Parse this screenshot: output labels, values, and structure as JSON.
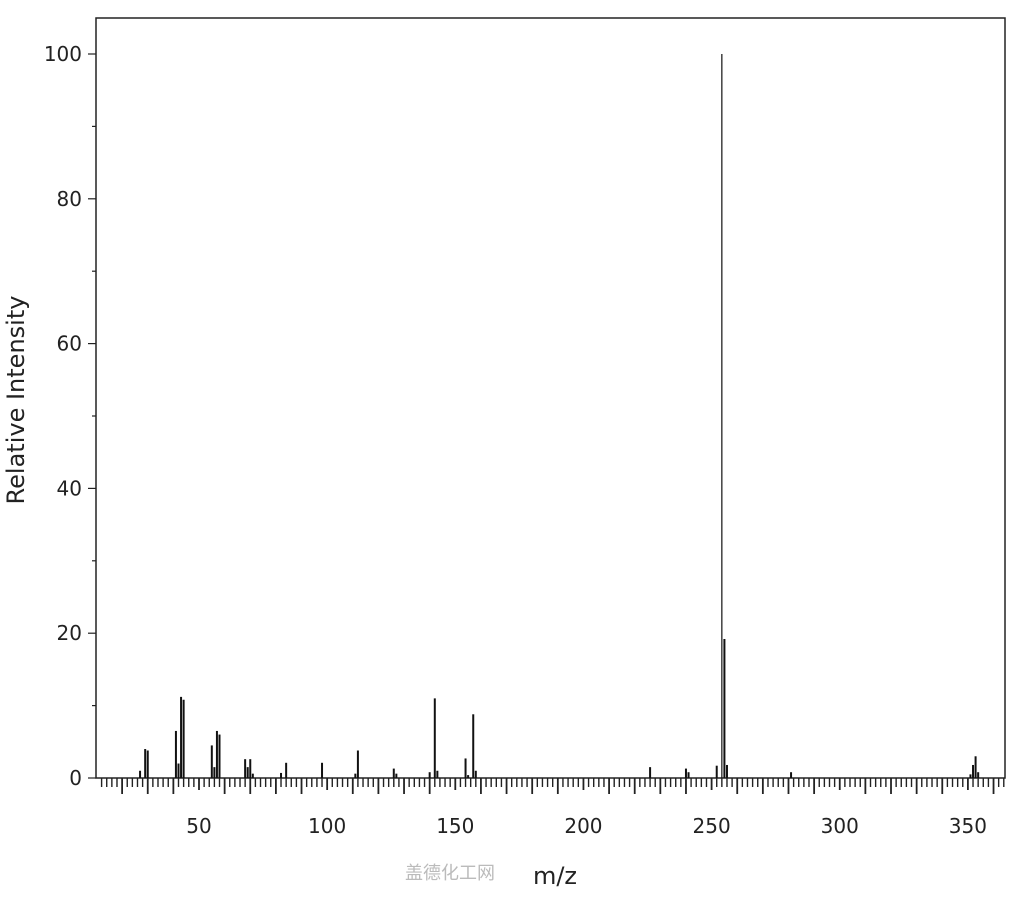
{
  "chart_data": {
    "type": "bar",
    "title": "",
    "xlabel": "m/z",
    "ylabel": "Relative Intensity",
    "xlim": [
      10,
      365
    ],
    "ylim": [
      0,
      105
    ],
    "x_ticks": [
      50,
      100,
      150,
      200,
      250,
      300,
      350
    ],
    "y_ticks": [
      0,
      20,
      40,
      60,
      80,
      100
    ],
    "grid": false,
    "peaks": [
      {
        "mz": 27,
        "intensity": 1.0
      },
      {
        "mz": 29,
        "intensity": 4.0
      },
      {
        "mz": 30,
        "intensity": 3.8
      },
      {
        "mz": 41,
        "intensity": 6.5
      },
      {
        "mz": 42,
        "intensity": 2.0
      },
      {
        "mz": 43,
        "intensity": 11.2
      },
      {
        "mz": 44,
        "intensity": 10.8
      },
      {
        "mz": 55,
        "intensity": 4.5
      },
      {
        "mz": 56,
        "intensity": 1.5
      },
      {
        "mz": 57,
        "intensity": 6.5
      },
      {
        "mz": 58,
        "intensity": 6.0
      },
      {
        "mz": 68,
        "intensity": 2.6
      },
      {
        "mz": 69,
        "intensity": 1.5
      },
      {
        "mz": 70,
        "intensity": 2.6
      },
      {
        "mz": 71,
        "intensity": 0.6
      },
      {
        "mz": 82,
        "intensity": 0.7
      },
      {
        "mz": 84,
        "intensity": 2.1
      },
      {
        "mz": 98,
        "intensity": 2.1
      },
      {
        "mz": 111,
        "intensity": 0.6
      },
      {
        "mz": 112,
        "intensity": 3.8
      },
      {
        "mz": 126,
        "intensity": 1.3
      },
      {
        "mz": 127,
        "intensity": 0.6
      },
      {
        "mz": 140,
        "intensity": 0.8
      },
      {
        "mz": 142,
        "intensity": 11.0
      },
      {
        "mz": 143,
        "intensity": 1.0
      },
      {
        "mz": 154,
        "intensity": 2.7
      },
      {
        "mz": 155,
        "intensity": 0.4
      },
      {
        "mz": 157,
        "intensity": 8.8
      },
      {
        "mz": 158,
        "intensity": 1.0
      },
      {
        "mz": 226,
        "intensity": 1.5
      },
      {
        "mz": 240,
        "intensity": 1.3
      },
      {
        "mz": 241,
        "intensity": 0.8
      },
      {
        "mz": 252,
        "intensity": 1.7
      },
      {
        "mz": 254,
        "intensity": 100.0
      },
      {
        "mz": 255,
        "intensity": 19.2
      },
      {
        "mz": 256,
        "intensity": 1.8
      },
      {
        "mz": 281,
        "intensity": 0.8
      },
      {
        "mz": 351,
        "intensity": 0.5
      },
      {
        "mz": 352,
        "intensity": 1.8
      },
      {
        "mz": 353,
        "intensity": 3.0
      },
      {
        "mz": 354,
        "intensity": 0.8
      }
    ]
  },
  "watermark": "盖德化工网",
  "colors": {
    "bars": "#111111",
    "axis": "#222222",
    "watermark": "#bbbbbb"
  }
}
